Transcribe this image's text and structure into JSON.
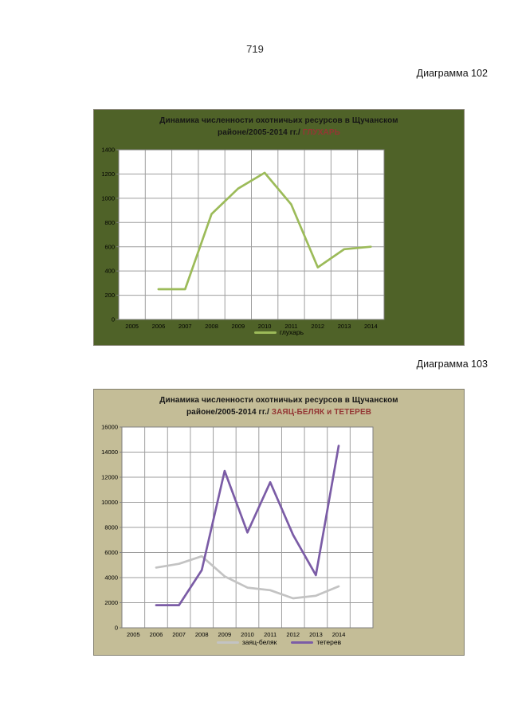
{
  "page": {
    "number": "719"
  },
  "captions": {
    "diagram102": "Диаграмма 102",
    "diagram103": "Диаграмма 103"
  },
  "chart_data": [
    {
      "type": "line",
      "title_line1": "Динамика численности охотничьих ресурсов в Щучанском",
      "title_line2": "районе/2005-2014 гг./ ",
      "title_highlight": "ГЛУХАРЬ",
      "categories": [
        "2005",
        "2006",
        "2007",
        "2008",
        "2009",
        "2010",
        "2011",
        "2012",
        "2013",
        "2014"
      ],
      "ylim": [
        0,
        1400
      ],
      "ytick_step": 200,
      "grid": true,
      "legend_position": "bottom",
      "series": [
        {
          "name": "глухарь",
          "color": "#9CBB59",
          "values": [
            null,
            250,
            250,
            870,
            1080,
            1210,
            950,
            430,
            580,
            600
          ]
        }
      ],
      "colors": {
        "background": "#4F6228",
        "plot_bg": "#FFFFFF",
        "grid": "#9E9E9E",
        "axis": "#808080",
        "title": "#161616",
        "highlight": "#943634",
        "label": "#000000"
      }
    },
    {
      "type": "line",
      "title_line1": "Динамика численности охотничьих ресурсов в Щучанском",
      "title_line2": "районе/2005-2014 гг./ ",
      "title_highlight": "ЗАЯЦ-БЕЛЯК и ТЕТЕРЕВ",
      "categories": [
        "2005",
        "2006",
        "2007",
        "2008",
        "2009",
        "2010",
        "2011",
        "2012",
        "2013",
        "2014"
      ],
      "ylim": [
        0,
        16000
      ],
      "ytick_step": 2000,
      "grid": true,
      "legend_position": "bottom",
      "series": [
        {
          "name": "заяц-беляк",
          "color": "#C3C3C3",
          "values": [
            null,
            4800,
            5100,
            5700,
            4100,
            3200,
            3000,
            2350,
            2550,
            3300
          ]
        },
        {
          "name": "тетерев",
          "color": "#7B5CA6",
          "values": [
            null,
            1800,
            1800,
            4600,
            12500,
            7600,
            11600,
            7400,
            4200,
            14500
          ]
        }
      ],
      "colors": {
        "background": "#C4BD97",
        "plot_bg": "#FFFFFF",
        "grid": "#9E9E9E",
        "axis": "#808080",
        "title": "#161616",
        "highlight": "#943634",
        "label": "#000000"
      }
    }
  ]
}
